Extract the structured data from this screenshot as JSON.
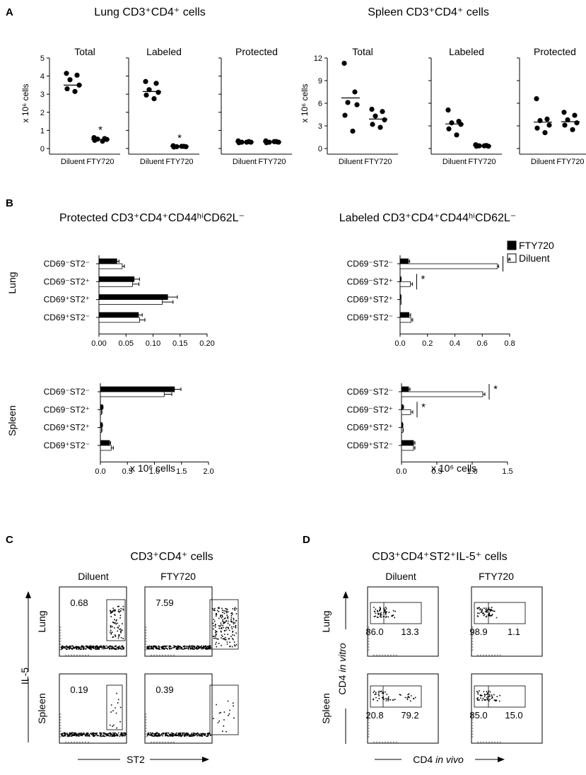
{
  "panels": [
    {
      "letter": "A"
    },
    {
      "letter": "B"
    },
    {
      "letter": "C"
    },
    {
      "letter": "D"
    }
  ],
  "panelA": {
    "plots": [
      {
        "title": "Lung CD3⁺CD4⁺ cells",
        "ylabel": "x 10⁶ cells",
        "ylim": [
          0,
          5
        ],
        "yticks": [
          "0",
          "1",
          "2",
          "3",
          "4",
          "5"
        ],
        "groups": [
          {
            "title": "Total",
            "xlabels": [
              "Diluent",
              "FTY720"
            ],
            "series": [
              {
                "name": "Diluent",
                "points": [
                  4.15,
                  4.05,
                  3.8,
                  3.5,
                  3.3,
                  3.15
                ],
                "mean": 3.5
              },
              {
                "name": "FTY720",
                "points": [
                  0.6,
                  0.55,
                  0.52,
                  0.5,
                  0.45,
                  0.4
                ],
                "mean": 0.5
              }
            ],
            "annotation": "*"
          },
          {
            "title": "Labeled",
            "xlabels": [
              "Diluent",
              "FTY720"
            ],
            "series": [
              {
                "name": "Diluent",
                "points": [
                  3.7,
                  3.6,
                  3.25,
                  3.1,
                  2.95,
                  2.75
                ],
                "mean": 3.15
              },
              {
                "name": "FTY720",
                "points": [
                  0.15,
                  0.12,
                  0.1,
                  0.1,
                  0.08,
                  0.12
                ],
                "mean": 0.12
              }
            ],
            "annotation": "*"
          },
          {
            "title": "Protected",
            "xlabels": [
              "Diluent",
              "FTY720"
            ],
            "series": [
              {
                "name": "Diluent",
                "points": [
                  0.42,
                  0.38,
                  0.35,
                  0.35,
                  0.32,
                  0.35
                ],
                "mean": 0.36
              },
              {
                "name": "FTY720",
                "points": [
                  0.42,
                  0.38,
                  0.35,
                  0.35,
                  0.32,
                  0.38
                ],
                "mean": 0.36
              }
            ]
          }
        ]
      },
      {
        "title": "Spleen CD3⁺CD4⁺ cells",
        "ylabel": "x 10⁶ cells",
        "ylim": [
          0,
          12
        ],
        "yticks": [
          "0",
          "3",
          "6",
          "9",
          "12"
        ],
        "groups": [
          {
            "title": "Total",
            "xlabels": [
              "Diluent",
              "FTY720"
            ],
            "series": [
              {
                "name": "Diluent",
                "points": [
                  11.3,
                  7.5,
                  6.1,
                  5.8,
                  4.4,
                  2.3
                ],
                "mean": 6.7
              },
              {
                "name": "FTY720",
                "points": [
                  5.2,
                  4.9,
                  4.3,
                  3.8,
                  3.2,
                  2.8
                ],
                "mean": 3.9
              }
            ]
          },
          {
            "title": "Labeled",
            "xlabels": [
              "Diluent",
              "FTY720"
            ],
            "series": [
              {
                "name": "Diluent",
                "points": [
                  5.1,
                  3.6,
                  3.4,
                  3.2,
                  2.6,
                  1.8
                ],
                "mean": 3.25
              },
              {
                "name": "FTY720",
                "points": [
                  0.5,
                  0.4,
                  0.35,
                  0.3,
                  0.3,
                  0.35
                ],
                "mean": 0.38
              }
            ]
          },
          {
            "title": "Protected",
            "xlabels": [
              "Diluent",
              "FTY720"
            ],
            "series": [
              {
                "name": "Diluent",
                "points": [
                  6.6,
                  3.9,
                  3.7,
                  3.1,
                  2.7,
                  2.1
                ],
                "mean": 3.5
              },
              {
                "name": "FTY720",
                "points": [
                  4.8,
                  4.4,
                  3.8,
                  3.4,
                  3.1,
                  2.5
                ],
                "mean": 3.55
              }
            ]
          }
        ]
      }
    ]
  },
  "panelB": {
    "titles": [
      "Protected CD3⁺CD4⁺CD44ʰⁱCD62L⁻",
      "Labeled CD3⁺CD4⁺CD44ʰⁱCD62L⁻"
    ],
    "rowlabels": [
      "Lung",
      "Spleen"
    ],
    "xlabel": "x 10⁶ cells",
    "categories": [
      "CD69⁻ST2⁻",
      "CD69⁻ST2⁺",
      "CD69⁺ST2⁺",
      "CD69⁺ST2⁻"
    ],
    "legend": [
      {
        "name": "FTY720",
        "color": "#000000"
      },
      {
        "name": "Diluent",
        "color": "#ffffff"
      }
    ],
    "charts": [
      {
        "region": "Lung",
        "cells": "Protected",
        "xlim": [
          0,
          0.2
        ],
        "ticks": [
          "0.00",
          "0.05",
          "0.10",
          "0.15",
          "0.20"
        ],
        "fty": [
          0.033,
          0.065,
          0.127,
          0.073
        ],
        "fty_err": [
          0.004,
          0.01,
          0.018,
          0.007
        ],
        "dil": [
          0.043,
          0.062,
          0.117,
          0.075
        ],
        "dil_err": [
          0.004,
          0.012,
          0.02,
          0.01
        ],
        "sig": []
      },
      {
        "region": "Lung",
        "cells": "Labeled",
        "xlim": [
          0,
          0.8
        ],
        "ticks": [
          "0.0",
          "0.2",
          "0.4",
          "0.6",
          "0.8"
        ],
        "fty": [
          0.06,
          0.005,
          0.005,
          0.065
        ],
        "fty_err": [
          0.01,
          0.003,
          0.002,
          0.012
        ],
        "dil": [
          0.71,
          0.075,
          0.005,
          0.08
        ],
        "dil_err": [
          0.01,
          0.015,
          0.002,
          0.012
        ],
        "sig": [
          0,
          1
        ],
        "sig_label": "*"
      },
      {
        "region": "Spleen",
        "cells": "Protected",
        "xlim": [
          0,
          2.0
        ],
        "ticks": [
          "0.0",
          "0.5",
          "1.0",
          "1.5",
          "2.0"
        ],
        "fty": [
          1.37,
          0.04,
          0.03,
          0.17
        ],
        "fty_err": [
          0.12,
          0.01,
          0.01,
          0.02
        ],
        "dil": [
          1.18,
          0.02,
          0.02,
          0.2
        ],
        "dil_err": [
          0.14,
          0.01,
          0.01,
          0.04
        ],
        "sig": []
      },
      {
        "region": "Spleen",
        "cells": "Labeled",
        "xlim": [
          0,
          1.5
        ],
        "ticks": [
          "0.0",
          "0.5",
          "1.0",
          "1.5"
        ],
        "fty": [
          0.1,
          0.02,
          0.015,
          0.17
        ],
        "fty_err": [
          0.02,
          0.01,
          0.005,
          0.02
        ],
        "dil": [
          1.15,
          0.13,
          0.02,
          0.17
        ],
        "dil_err": [
          0.03,
          0.03,
          0.005,
          0.02
        ],
        "sig": [
          0,
          1
        ],
        "sig_label": "*"
      }
    ]
  },
  "panelC": {
    "title": "CD3⁺CD4⁺ cells",
    "columns": [
      "Diluent",
      "FTY720"
    ],
    "rows": [
      "Lung",
      "Spleen"
    ],
    "xlabel": "ST2",
    "ylabel": "IL-5",
    "gate_values": [
      "0.68",
      "7.59",
      "0.19",
      "0.39"
    ]
  },
  "panelD": {
    "title": "CD3⁺CD4⁺ST2⁺IL-5⁺ cells",
    "columns": [
      "Diluent",
      "FTY720"
    ],
    "rows": [
      "Lung",
      "Spleen"
    ],
    "xlabel_prefix": "CD4 ",
    "xlabel_italic": "in vivo",
    "ylabel_prefix": "CD4 ",
    "ylabel_italic": "in vitro",
    "gate_values": [
      [
        "86.0",
        "13.3"
      ],
      [
        "98.9",
        "1.1"
      ],
      [
        "20.8",
        "79.2"
      ],
      [
        "85.0",
        "15.0"
      ]
    ]
  }
}
